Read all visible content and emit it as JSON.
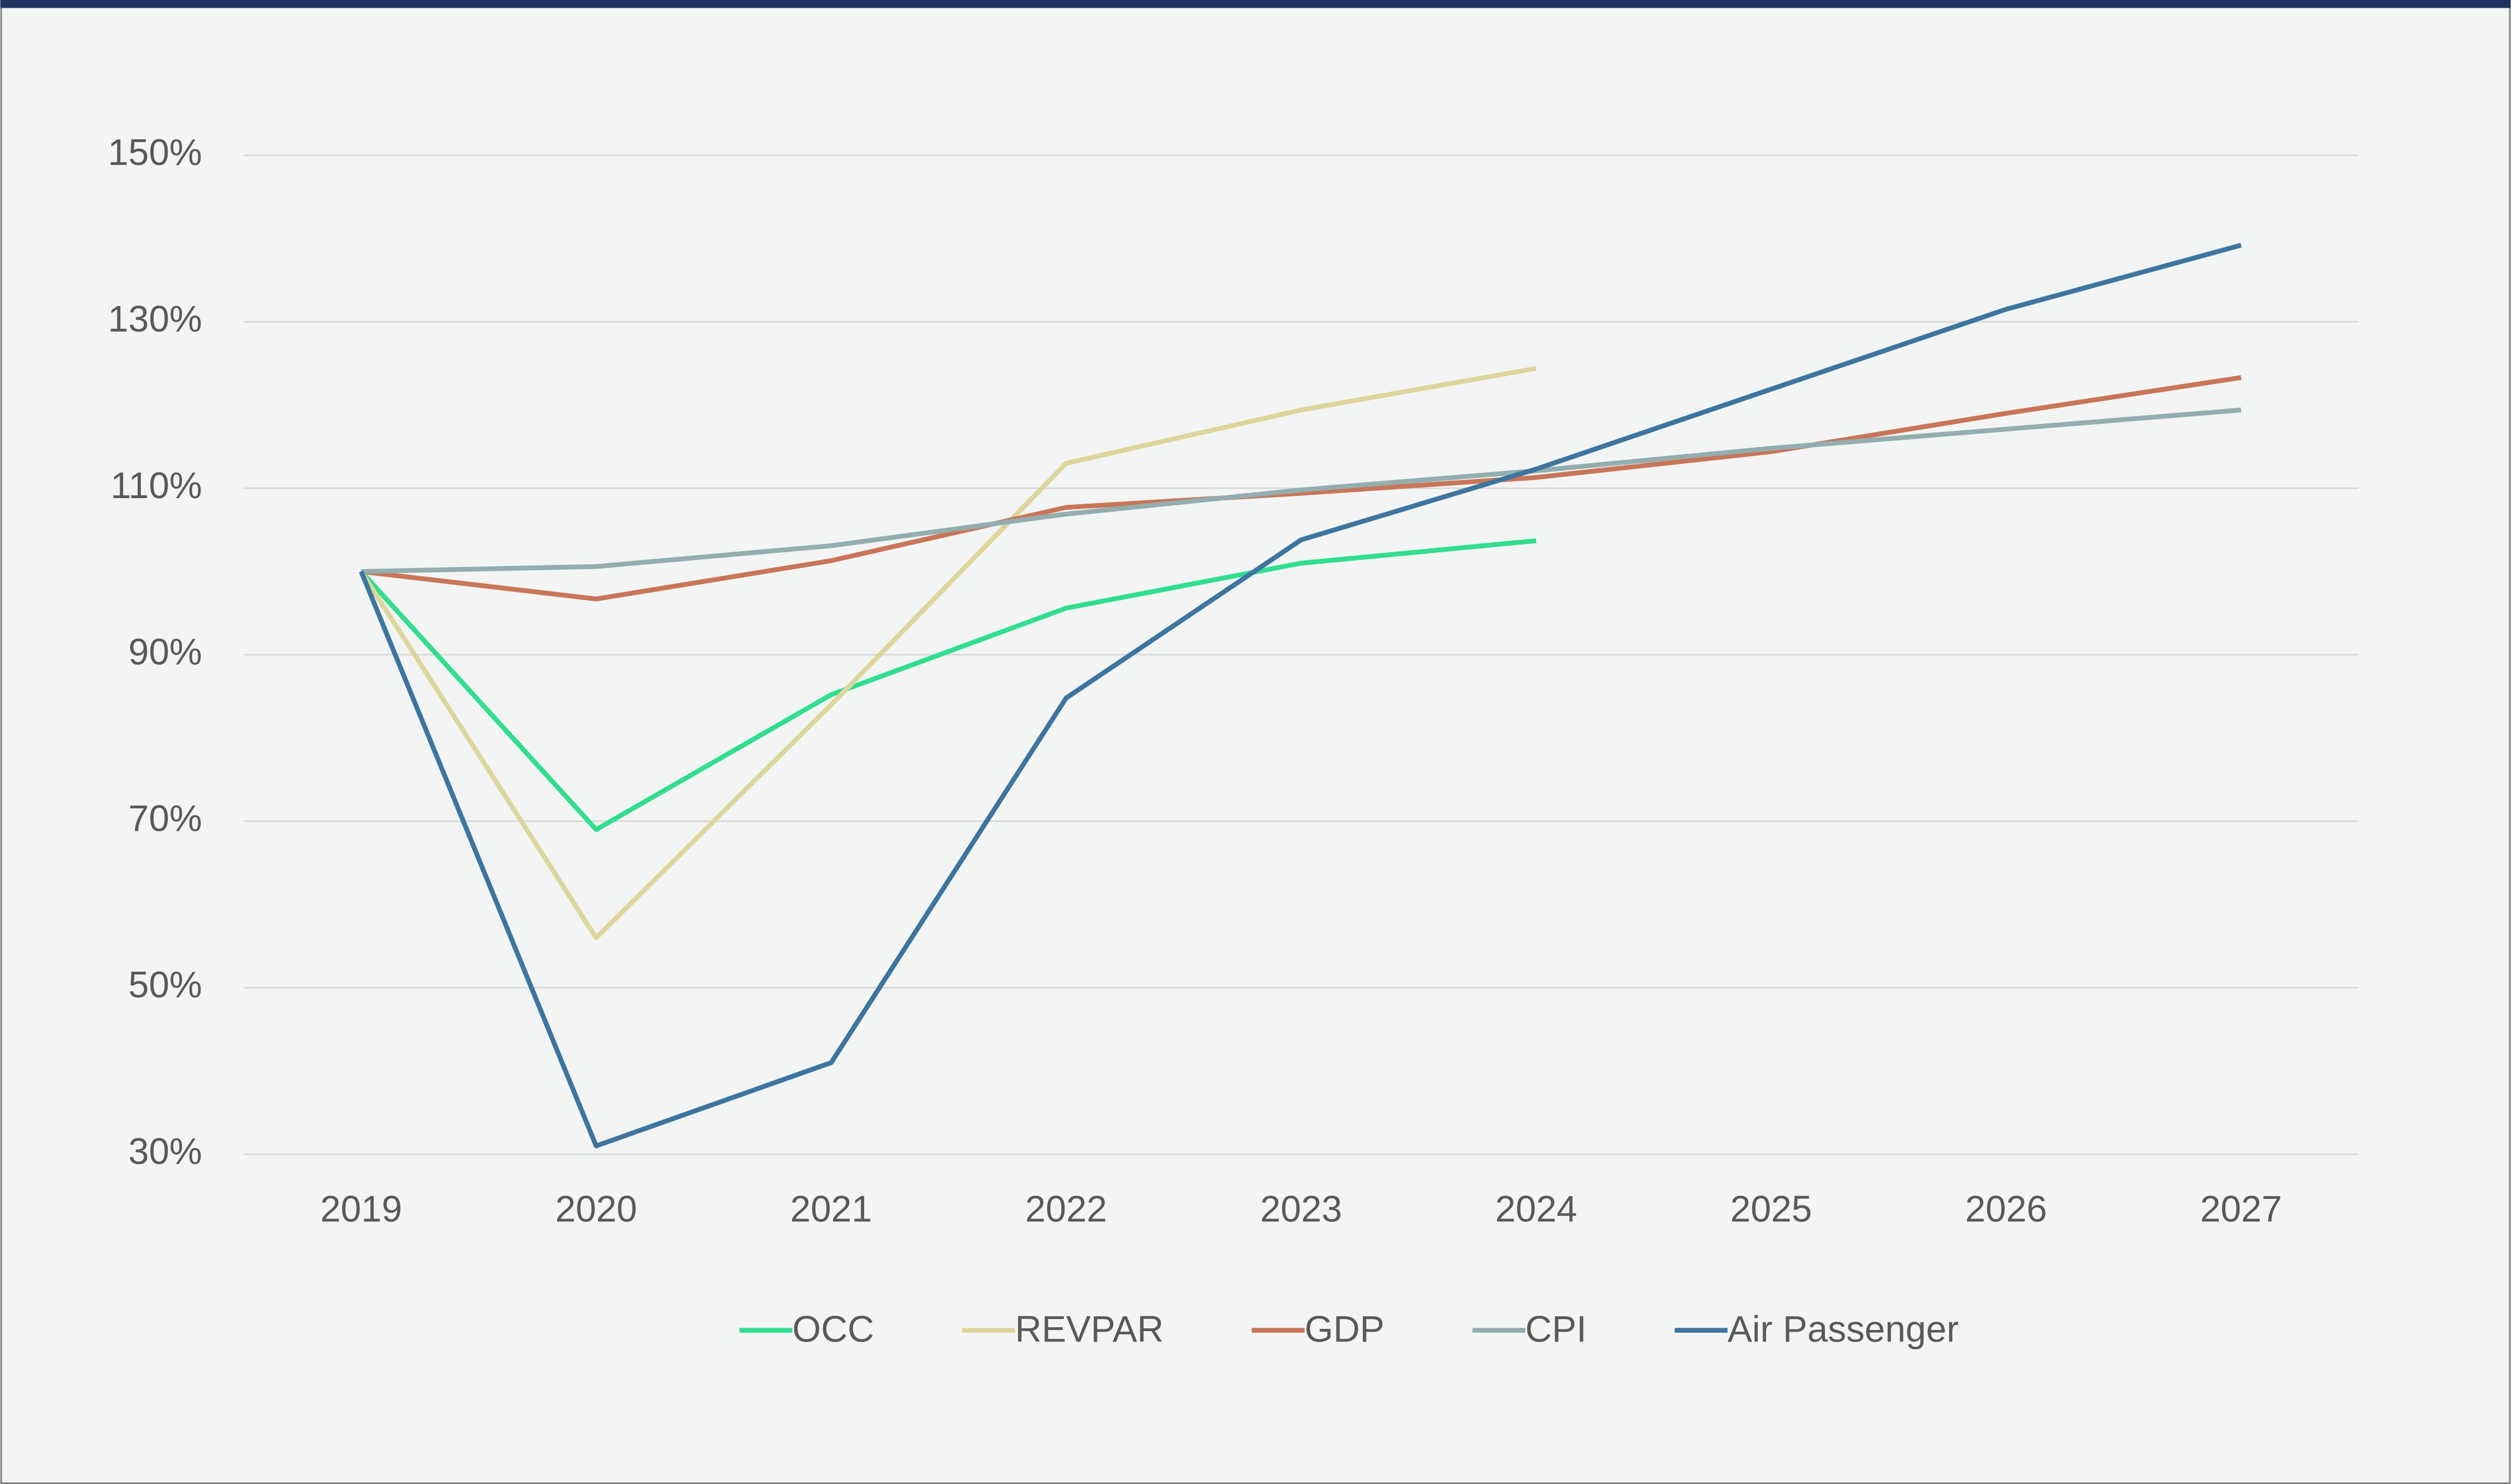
{
  "chart_data": {
    "type": "line",
    "categories": [
      "2019",
      "2020",
      "2021",
      "2022",
      "2023",
      "2024",
      "2025",
      "2026",
      "2027"
    ],
    "series": [
      {
        "name": "OCC",
        "color": "#2ee08e",
        "values": [
          100,
          69,
          85.2,
          95.6,
          101,
          103.7,
          null,
          null,
          null
        ]
      },
      {
        "name": "REVPAR",
        "color": "#ddd69a",
        "values": [
          100,
          56,
          84,
          113,
          119.4,
          124.4,
          null,
          null,
          null
        ]
      },
      {
        "name": "GDP",
        "color": "#c97556",
        "values": [
          100,
          96.7,
          101.3,
          107.7,
          109.4,
          111.3,
          114.4,
          119,
          123.3
        ]
      },
      {
        "name": "CPI",
        "color": "#93aeae",
        "values": [
          100,
          100.6,
          103.1,
          106.9,
          109.8,
          112.1,
          114.8,
          117.1,
          119.4
        ]
      },
      {
        "name": "Air Passenger",
        "color": "#3b75a0",
        "values": [
          100,
          31,
          41,
          84.8,
          103.8,
          112.3,
          121.9,
          131.5,
          139.2
        ]
      }
    ],
    "ylim": [
      30,
      150
    ],
    "yticks": [
      {
        "value": 30,
        "label": "30%"
      },
      {
        "value": 50,
        "label": "50%"
      },
      {
        "value": 70,
        "label": "70%"
      },
      {
        "value": 90,
        "label": "90%"
      },
      {
        "value": 110,
        "label": "110%"
      },
      {
        "value": 130,
        "label": "130%"
      },
      {
        "value": 150,
        "label": "150%"
      }
    ],
    "grid": true,
    "legend": "bottom"
  }
}
